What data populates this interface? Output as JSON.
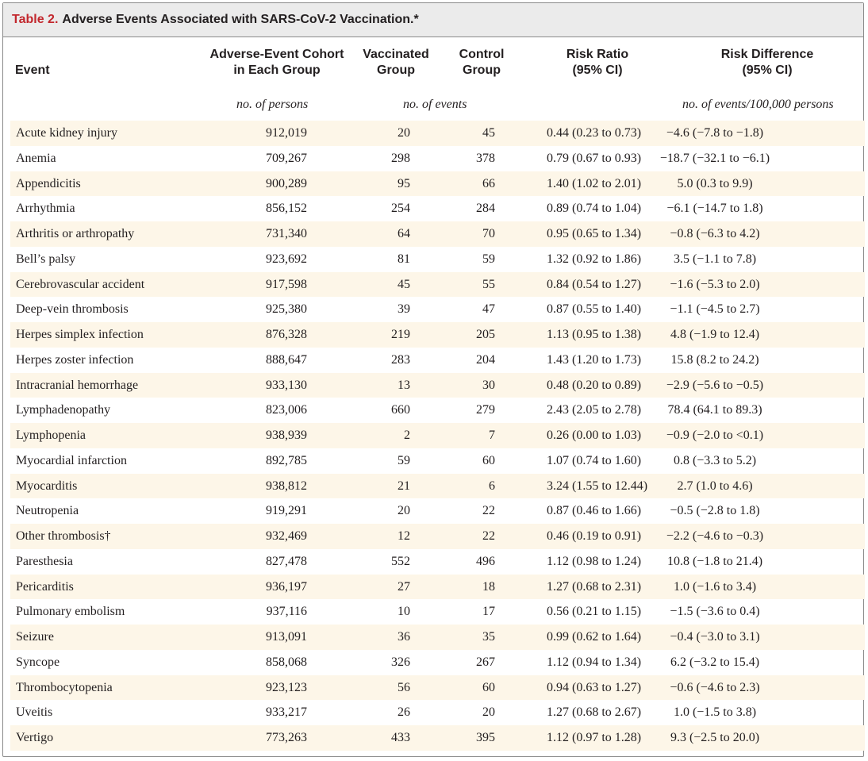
{
  "table": {
    "number": "Table 2.",
    "title": "Adverse Events Associated with SARS-CoV-2 Vaccination.*",
    "headers": {
      "event": "Event",
      "cohort_line1": "Adverse-Event Cohort",
      "cohort_line2": "in Each Group",
      "vacc_line1": "Vaccinated",
      "vacc_line2": "Group",
      "ctrl_line1": "Control",
      "ctrl_line2": "Group",
      "rr_line1": "Risk Ratio",
      "rr_line2": "(95% CI)",
      "rd_line1": "Risk Difference",
      "rd_line2": "(95% CI)"
    },
    "units": {
      "persons": "no. of persons",
      "events": "no. of events",
      "per100k": "no. of events/100,000 persons"
    },
    "rows": [
      {
        "event": "Acute kidney injury",
        "cohort": "912,019",
        "vaccinated": "20",
        "control": "45",
        "risk_ratio": "0.44 (0.23 to 0.73)",
        "risk_difference": "−4.6 (−7.8 to −1.8)"
      },
      {
        "event": "Anemia",
        "cohort": "709,267",
        "vaccinated": "298",
        "control": "378",
        "risk_ratio": "0.79 (0.67 to 0.93)",
        "risk_difference": "−18.7 (−32.1 to −6.1)"
      },
      {
        "event": "Appendicitis",
        "cohort": "900,289",
        "vaccinated": "95",
        "control": "66",
        "risk_ratio": "1.40 (1.02 to 2.01)",
        "risk_difference": "5.0 (0.3 to 9.9)"
      },
      {
        "event": "Arrhythmia",
        "cohort": "856,152",
        "vaccinated": "254",
        "control": "284",
        "risk_ratio": "0.89 (0.74 to 1.04)",
        "risk_difference": "−6.1 (−14.7 to 1.8)"
      },
      {
        "event": "Arthritis or arthropathy",
        "cohort": "731,340",
        "vaccinated": "64",
        "control": "70",
        "risk_ratio": "0.95 (0.65 to 1.34)",
        "risk_difference": "−0.8 (−6.3 to 4.2)"
      },
      {
        "event": "Bell’s palsy",
        "cohort": "923,692",
        "vaccinated": "81",
        "control": "59",
        "risk_ratio": "1.32 (0.92 to 1.86)",
        "risk_difference": "3.5 (−1.1 to 7.8)"
      },
      {
        "event": "Cerebrovascular accident",
        "cohort": "917,598",
        "vaccinated": "45",
        "control": "55",
        "risk_ratio": "0.84 (0.54 to 1.27)",
        "risk_difference": "−1.6 (−5.3 to 2.0)"
      },
      {
        "event": "Deep-vein thrombosis",
        "cohort": "925,380",
        "vaccinated": "39",
        "control": "47",
        "risk_ratio": "0.87 (0.55 to 1.40)",
        "risk_difference": "−1.1 (−4.5 to 2.7)"
      },
      {
        "event": "Herpes simplex infection",
        "cohort": "876,328",
        "vaccinated": "219",
        "control": "205",
        "risk_ratio": "1.13 (0.95 to 1.38)",
        "risk_difference": "4.8 (−1.9 to 12.4)"
      },
      {
        "event": "Herpes zoster infection",
        "cohort": "888,647",
        "vaccinated": "283",
        "control": "204",
        "risk_ratio": "1.43 (1.20 to 1.73)",
        "risk_difference": "15.8 (8.2 to 24.2)"
      },
      {
        "event": "Intracranial hemorrhage",
        "cohort": "933,130",
        "vaccinated": "13",
        "control": "30",
        "risk_ratio": "0.48 (0.20 to 0.89)",
        "risk_difference": "−2.9 (−5.6 to −0.5)"
      },
      {
        "event": "Lymphadenopathy",
        "cohort": "823,006",
        "vaccinated": "660",
        "control": "279",
        "risk_ratio": "2.43 (2.05 to 2.78)",
        "risk_difference": "78.4 (64.1 to 89.3)"
      },
      {
        "event": "Lymphopenia",
        "cohort": "938,939",
        "vaccinated": "2",
        "control": "7",
        "risk_ratio": "0.26 (0.00 to 1.03)",
        "risk_difference": "−0.9 (−2.0 to <0.1)"
      },
      {
        "event": "Myocardial infarction",
        "cohort": "892,785",
        "vaccinated": "59",
        "control": "60",
        "risk_ratio": "1.07 (0.74 to 1.60)",
        "risk_difference": "0.8 (−3.3 to 5.2)"
      },
      {
        "event": "Myocarditis",
        "cohort": "938,812",
        "vaccinated": "21",
        "control": "6",
        "risk_ratio": "3.24 (1.55 to 12.44)",
        "risk_difference": "2.7 (1.0 to 4.6)"
      },
      {
        "event": "Neutropenia",
        "cohort": "919,291",
        "vaccinated": "20",
        "control": "22",
        "risk_ratio": "0.87 (0.46 to 1.66)",
        "risk_difference": "−0.5 (−2.8 to 1.8)"
      },
      {
        "event": "Other thrombosis†",
        "cohort": "932,469",
        "vaccinated": "12",
        "control": "22",
        "risk_ratio": "0.46 (0.19 to 0.91)",
        "risk_difference": "−2.2 (−4.6 to −0.3)"
      },
      {
        "event": "Paresthesia",
        "cohort": "827,478",
        "vaccinated": "552",
        "control": "496",
        "risk_ratio": "1.12 (0.98 to 1.24)",
        "risk_difference": "10.8 (−1.8 to 21.4)"
      },
      {
        "event": "Pericarditis",
        "cohort": "936,197",
        "vaccinated": "27",
        "control": "18",
        "risk_ratio": "1.27 (0.68 to 2.31)",
        "risk_difference": "1.0 (−1.6 to 3.4)"
      },
      {
        "event": "Pulmonary embolism",
        "cohort": "937,116",
        "vaccinated": "10",
        "control": "17",
        "risk_ratio": "0.56 (0.21 to 1.15)",
        "risk_difference": "−1.5 (−3.6 to 0.4)"
      },
      {
        "event": "Seizure",
        "cohort": "913,091",
        "vaccinated": "36",
        "control": "35",
        "risk_ratio": "0.99 (0.62 to 1.64)",
        "risk_difference": "−0.4 (−3.0 to 3.1)"
      },
      {
        "event": "Syncope",
        "cohort": "858,068",
        "vaccinated": "326",
        "control": "267",
        "risk_ratio": "1.12 (0.94 to 1.34)",
        "risk_difference": "6.2 (−3.2 to 15.4)"
      },
      {
        "event": "Thrombocytopenia",
        "cohort": "923,123",
        "vaccinated": "56",
        "control": "60",
        "risk_ratio": "0.94 (0.63 to 1.27)",
        "risk_difference": "−0.6 (−4.6 to 2.3)"
      },
      {
        "event": "Uveitis",
        "cohort": "933,217",
        "vaccinated": "26",
        "control": "20",
        "risk_ratio": "1.27 (0.68 to 2.67)",
        "risk_difference": "1.0 (−1.5 to 3.8)"
      },
      {
        "event": "Vertigo",
        "cohort": "773,263",
        "vaccinated": "433",
        "control": "395",
        "risk_ratio": "1.12 (0.97 to 1.28)",
        "risk_difference": "9.3 (−2.5 to 20.0)"
      }
    ]
  },
  "colors": {
    "title_accent": "#c2272d",
    "title_background": "#ebebeb",
    "row_shade": "#fdf6e8"
  }
}
